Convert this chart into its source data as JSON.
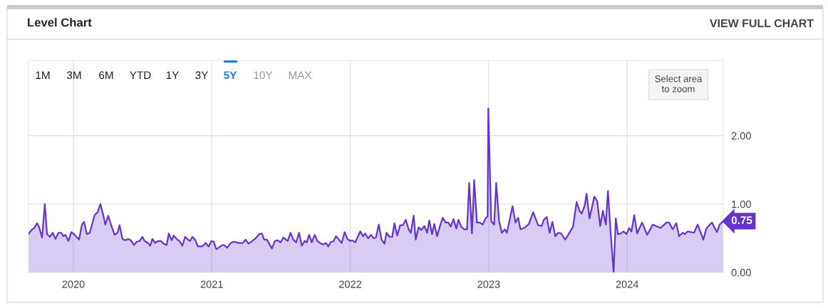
{
  "chart_data": {
    "type": "area",
    "title": "Level Chart",
    "annotations": [
      "VIEW FULL CHART",
      "1M",
      "3M",
      "6M",
      "YTD",
      "1Y",
      "3Y",
      "5Y",
      "10Y",
      "MAX",
      "Select area\nto zoom",
      {
        "text": "0.75",
        "x": 2024.694,
        "y": 0.75
      }
    ],
    "x": [
      2019.676,
      2019.697,
      2019.717,
      2019.738,
      2019.753,
      2019.774,
      2019.794,
      2019.81,
      2019.83,
      2019.851,
      2019.871,
      2019.892,
      2019.913,
      2019.928,
      2019.943,
      2019.964,
      2019.985,
      2020.005,
      2020.041,
      2020.062,
      2020.077,
      2020.098,
      2020.118,
      2020.154,
      2020.175,
      2020.195,
      2020.216,
      2020.231,
      2020.252,
      2020.272,
      2020.298,
      2020.319,
      2020.334,
      2020.355,
      2020.375,
      2020.396,
      2020.416,
      2020.437,
      2020.458,
      2020.478,
      2020.499,
      2020.514,
      2020.54,
      2020.555,
      2020.571,
      2020.591,
      2020.612,
      2020.632,
      2020.653,
      2020.674,
      2020.689,
      2020.71,
      2020.725,
      2020.746,
      2020.766,
      2020.787,
      2020.807,
      2020.828,
      2020.843,
      2020.859,
      2020.879,
      2020.9,
      2020.931,
      2020.956,
      2020.977,
      2020.997,
      2021.013,
      2021.033,
      2021.075,
      2021.09,
      2021.111,
      2021.136,
      2021.157,
      2021.177,
      2021.198,
      2021.224,
      2021.244,
      2021.265,
      2021.311,
      2021.342,
      2021.362,
      2021.378,
      2021.398,
      2021.434,
      2021.455,
      2021.476,
      2021.496,
      2021.517,
      2021.548,
      2021.568,
      2021.589,
      2021.609,
      2021.63,
      2021.65,
      2021.671,
      2021.686,
      2021.702,
      2021.722,
      2021.743,
      2021.763,
      2021.789,
      2021.805,
      2021.825,
      2021.841,
      2021.861,
      2021.877,
      2021.897,
      2021.918,
      2021.938,
      2021.959,
      2021.979,
      2022.0,
      2022.015,
      2022.036,
      2022.072,
      2022.093,
      2022.108,
      2022.129,
      2022.149,
      2022.17,
      2022.185,
      2022.206,
      2022.226,
      2022.247,
      2022.262,
      2022.283,
      2022.303,
      2022.319,
      2022.339,
      2022.36,
      2022.38,
      2022.401,
      2022.422,
      2022.437,
      2022.458,
      2022.473,
      2022.494,
      2022.514,
      2022.535,
      2022.555,
      2022.571,
      2022.591,
      2022.607,
      2022.627,
      2022.648,
      2022.668,
      2022.689,
      2022.709,
      2022.725,
      2022.746,
      2022.766,
      2022.781,
      2022.802,
      2022.823,
      2022.843,
      2022.859,
      2022.879,
      2022.895,
      2022.915,
      2022.936,
      2022.956,
      2022.977,
      2022.992,
      2022.997,
      2023.018,
      2023.039,
      2023.054,
      2023.075,
      2023.095,
      2023.116,
      2023.131,
      2023.172,
      2023.193,
      2023.213,
      2023.229,
      2023.265,
      2023.29,
      2023.321,
      2023.357,
      2023.383,
      2023.398,
      2023.419,
      2023.44,
      2023.46,
      2023.481,
      2023.501,
      2023.522,
      2023.553,
      2023.609,
      2023.635,
      2023.656,
      2023.671,
      2023.692,
      2023.707,
      2023.728,
      2023.763,
      2023.784,
      2023.805,
      2023.825,
      2023.846,
      2023.861,
      2023.882,
      2023.902,
      2023.918,
      2023.933,
      2023.954,
      2023.974,
      2023.995,
      2024.015,
      2024.031,
      2024.051,
      2024.072,
      2024.108,
      2024.144,
      2024.185,
      2024.242,
      2024.283,
      2024.303,
      2024.329,
      2024.355,
      2024.375,
      2024.401,
      2024.416,
      2024.437,
      2024.483,
      2024.509,
      2024.55,
      2024.571,
      2024.612,
      2024.648,
      2024.668,
      2024.694
    ],
    "series": [
      {
        "color": "#6633cc",
        "values": [
          0.56,
          0.62,
          0.65,
          0.72,
          0.66,
          0.51,
          1.0,
          0.56,
          0.52,
          0.58,
          0.49,
          0.58,
          0.58,
          0.53,
          0.55,
          0.46,
          0.59,
          0.56,
          0.48,
          0.7,
          0.74,
          0.56,
          0.58,
          0.84,
          0.88,
          1.0,
          0.84,
          0.7,
          0.83,
          0.7,
          0.55,
          0.58,
          0.69,
          0.49,
          0.47,
          0.49,
          0.47,
          0.4,
          0.45,
          0.46,
          0.52,
          0.46,
          0.43,
          0.39,
          0.49,
          0.43,
          0.46,
          0.46,
          0.42,
          0.4,
          0.57,
          0.47,
          0.54,
          0.49,
          0.46,
          0.39,
          0.52,
          0.48,
          0.46,
          0.52,
          0.48,
          0.38,
          0.38,
          0.43,
          0.38,
          0.46,
          0.45,
          0.34,
          0.4,
          0.4,
          0.36,
          0.43,
          0.45,
          0.44,
          0.43,
          0.43,
          0.48,
          0.42,
          0.49,
          0.56,
          0.57,
          0.48,
          0.48,
          0.35,
          0.46,
          0.47,
          0.44,
          0.51,
          0.46,
          0.58,
          0.48,
          0.44,
          0.58,
          0.39,
          0.46,
          0.44,
          0.55,
          0.44,
          0.55,
          0.46,
          0.42,
          0.41,
          0.43,
          0.38,
          0.45,
          0.45,
          0.53,
          0.48,
          0.43,
          0.59,
          0.49,
          0.46,
          0.47,
          0.44,
          0.6,
          0.53,
          0.57,
          0.5,
          0.55,
          0.5,
          0.51,
          0.7,
          0.48,
          0.42,
          0.58,
          0.52,
          0.52,
          0.72,
          0.54,
          0.69,
          0.69,
          0.77,
          0.63,
          0.58,
          0.83,
          0.48,
          0.66,
          0.62,
          0.68,
          0.58,
          0.76,
          0.56,
          0.71,
          0.53,
          0.68,
          0.8,
          0.73,
          0.73,
          0.67,
          0.78,
          0.64,
          0.77,
          0.67,
          0.63,
          0.63,
          1.31,
          0.57,
          1.35,
          0.73,
          0.73,
          0.7,
          0.79,
          0.82,
          2.4,
          0.75,
          0.7,
          1.31,
          0.75,
          0.58,
          0.63,
          0.58,
          0.97,
          0.73,
          0.8,
          0.63,
          0.66,
          0.71,
          0.88,
          0.69,
          0.68,
          0.77,
          0.81,
          0.58,
          0.74,
          0.53,
          0.58,
          0.57,
          0.48,
          0.67,
          1.03,
          0.9,
          0.86,
          0.97,
          1.15,
          0.79,
          1.11,
          1.04,
          0.68,
          0.9,
          0.7,
          1.19,
          0.55,
          0.0,
          0.79,
          0.56,
          0.57,
          0.6,
          0.56,
          0.65,
          0.6,
          0.84,
          0.57,
          0.73,
          0.55,
          0.7,
          0.65,
          0.73,
          0.73,
          0.63,
          0.72,
          0.53,
          0.58,
          0.56,
          0.6,
          0.58,
          0.7,
          0.48,
          0.64,
          0.73,
          0.59,
          0.7,
          0.75
        ]
      }
    ],
    "xlim": [
      2019.676,
      2024.694
    ],
    "ylim": [
      0,
      3.1
    ],
    "xticks": [
      2020,
      2021,
      2022,
      2023,
      2024
    ],
    "yticks": [
      {
        "value": 0,
        "label": "0.00"
      },
      {
        "value": 1,
        "label": "1.00"
      },
      {
        "value": 2,
        "label": "2.00"
      }
    ],
    "grid": true
  }
}
